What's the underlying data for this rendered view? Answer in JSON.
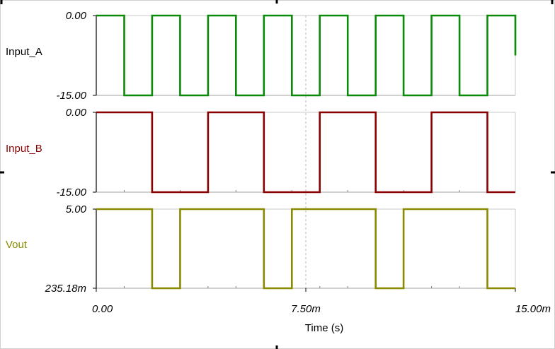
{
  "chart_data": {
    "type": "line",
    "step": true,
    "xlabel": "Time (s)",
    "x_tick_labels": [
      "0.00",
      "7.50m",
      "15.00m"
    ],
    "x_ticks": [
      0,
      0.0075,
      0.015
    ],
    "xlim": [
      0,
      0.015
    ],
    "grid": {
      "vertical_center_dashed": true
    },
    "series": [
      {
        "name": "Input_A",
        "color": "#0a8a0a",
        "ylim": [
          -15,
          0
        ],
        "y_tick_labels": [
          "0.00",
          "-15.00"
        ],
        "x": [
          0,
          0.001,
          0.001,
          0.002,
          0.002,
          0.003,
          0.003,
          0.004,
          0.004,
          0.005,
          0.005,
          0.006,
          0.006,
          0.007,
          0.007,
          0.008,
          0.008,
          0.009,
          0.009,
          0.01,
          0.01,
          0.011,
          0.011,
          0.012,
          0.012,
          0.013,
          0.013,
          0.014,
          0.014,
          0.015,
          0.015
        ],
        "y": [
          0,
          0,
          -15,
          -15,
          0,
          0,
          -15,
          -15,
          0,
          0,
          -15,
          -15,
          0,
          0,
          -15,
          -15,
          0,
          0,
          -15,
          -15,
          0,
          0,
          -15,
          -15,
          0,
          0,
          -15,
          -15,
          0,
          0,
          -7.5
        ]
      },
      {
        "name": "Input_B",
        "color": "#8b0000",
        "ylim": [
          -15,
          0
        ],
        "y_tick_labels": [
          "0.00",
          "-15.00"
        ],
        "x": [
          0,
          0.002,
          0.002,
          0.004,
          0.004,
          0.006,
          0.006,
          0.008,
          0.008,
          0.01,
          0.01,
          0.012,
          0.012,
          0.014,
          0.014,
          0.015
        ],
        "y": [
          0,
          0,
          -15,
          -15,
          0,
          0,
          -15,
          -15,
          0,
          0,
          -15,
          -15,
          0,
          0,
          -15,
          -15
        ]
      },
      {
        "name": "Vout",
        "color": "#8a8a00",
        "ylim": [
          0.23518,
          5
        ],
        "y_tick_labels": [
          "5.00",
          "235.18m"
        ],
        "x": [
          0,
          0.002,
          0.002,
          0.003,
          0.003,
          0.006,
          0.006,
          0.007,
          0.007,
          0.01,
          0.01,
          0.011,
          0.011,
          0.014,
          0.014,
          0.015
        ],
        "y": [
          5,
          5,
          0.23518,
          0.23518,
          5,
          5,
          0.23518,
          0.23518,
          5,
          5,
          0.23518,
          0.23518,
          5,
          5,
          0.23518,
          0.23518
        ]
      }
    ]
  }
}
